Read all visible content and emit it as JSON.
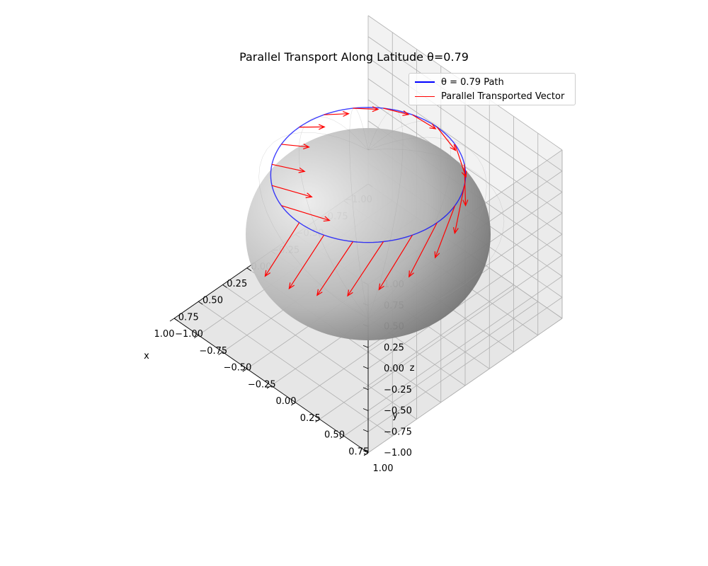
{
  "chart_data": {
    "type": "3d-surface-quiver",
    "title": "Parallel Transport Along Latitude θ=0.79",
    "theta": 0.79,
    "xlabel": "x",
    "ylabel": "y",
    "zlabel": "z",
    "xlim": [
      -1.0,
      1.0
    ],
    "ylim": [
      -1.0,
      1.0
    ],
    "zlim": [
      -1.0,
      1.0
    ],
    "ticks": [
      -1.0,
      -0.75,
      -0.5,
      -0.25,
      0.0,
      0.25,
      0.5,
      0.75,
      1.0
    ],
    "tick_labels": [
      "−1.00",
      "−0.75",
      "−0.50",
      "−0.25",
      "0.00",
      "0.25",
      "0.50",
      "0.75",
      "1.00"
    ],
    "surface": "unit sphere",
    "path_color": "#0000ff",
    "vector_color": "#ff0000",
    "vector_count": 20,
    "vector_length": 0.5,
    "legend_placement": "upper right",
    "legend": [
      {
        "label": "θ = 0.79 Path",
        "color": "#0000ff",
        "style": "line"
      },
      {
        "label": "Parallel Transported Vector",
        "color": "#ff0000",
        "style": "thin-line"
      }
    ]
  }
}
